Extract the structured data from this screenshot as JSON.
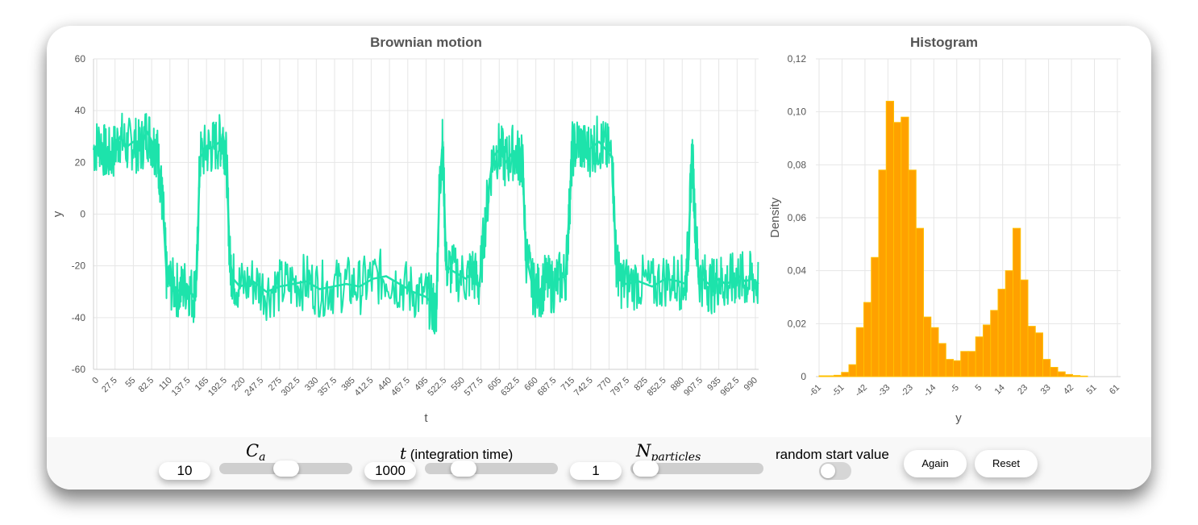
{
  "colors": {
    "line": "#1de3ab",
    "bars": "#ffa100",
    "barEdge": "#ffc000",
    "axisText": "#555555",
    "grid": "#e6e6e6"
  },
  "chart_data": [
    {
      "type": "line",
      "title": "Brownian motion",
      "xlabel": "t",
      "ylabel": "y",
      "xlim": [
        0,
        1000
      ],
      "ylim": [
        -60,
        60
      ],
      "x_ticks": [
        "0",
        "27.5",
        "55",
        "82.5",
        "110",
        "137.5",
        "165",
        "192.5",
        "220",
        "247.5",
        "275",
        "302.5",
        "330",
        "357.5",
        "385",
        "412.5",
        "440",
        "467.5",
        "495",
        "522.5",
        "550",
        "577.5",
        "605",
        "632.5",
        "660",
        "687.5",
        "715",
        "742.5",
        "770",
        "797.5",
        "825",
        "852.5",
        "880",
        "907.5",
        "935",
        "962.5",
        "990"
      ],
      "y_ticks": [
        "60",
        "40",
        "20",
        "0",
        "-20",
        "-40",
        "-60"
      ],
      "grid": true,
      "series": [
        {
          "x": [
            0,
            10,
            20,
            30,
            40,
            50,
            60,
            70,
            80,
            90,
            95,
            100,
            105,
            110,
            120,
            130,
            140,
            150,
            155,
            160,
            170,
            180,
            190,
            195,
            200,
            205,
            210,
            220,
            240,
            260,
            280,
            300,
            320,
            340,
            360,
            380,
            400,
            420,
            440,
            460,
            480,
            500,
            510,
            515,
            520,
            525,
            530,
            540,
            560,
            570,
            580,
            590,
            600,
            610,
            620,
            630,
            640,
            645,
            650,
            660,
            670,
            680,
            690,
            700,
            710,
            715,
            720,
            730,
            740,
            750,
            760,
            770,
            780,
            785,
            790,
            800,
            820,
            840,
            860,
            880,
            890,
            895,
            900,
            905,
            910,
            920,
            930,
            940,
            950,
            960,
            970,
            980,
            990,
            1000
          ],
          "y": [
            25,
            28,
            22,
            24,
            30,
            26,
            28,
            25,
            32,
            27,
            25,
            15,
            0,
            -25,
            -28,
            -30,
            -27,
            -32,
            -25,
            22,
            25,
            26,
            28,
            30,
            20,
            -18,
            -25,
            -28,
            -26,
            -30,
            -28,
            -27,
            -26,
            -29,
            -28,
            -27,
            -28,
            -25,
            -24,
            -27,
            -30,
            -32,
            -35,
            -40,
            10,
            28,
            -20,
            -22,
            -25,
            -22,
            -28,
            0,
            22,
            25,
            20,
            24,
            22,
            20,
            -15,
            -28,
            -30,
            -26,
            -28,
            -25,
            -24,
            0,
            25,
            28,
            24,
            26,
            28,
            25,
            22,
            -15,
            -25,
            -27,
            -26,
            -28,
            -25,
            -26,
            -27,
            -10,
            25,
            -5,
            -24,
            -26,
            -28,
            -25,
            -27,
            -26,
            -24,
            -26,
            -25,
            -27
          ]
        }
      ]
    },
    {
      "type": "bar",
      "title": "Histogram",
      "xlabel": "y",
      "ylabel": "Density",
      "ylim": [
        0,
        0.12
      ],
      "y_ticks": [
        "0,12",
        "0,10",
        "0,08",
        "0,06",
        "0,04",
        "0,02",
        "0"
      ],
      "x_ticks": [
        "-61",
        "-51",
        "-42",
        "-33",
        "-23",
        "-14",
        "-5",
        "5",
        "14",
        "23",
        "33",
        "42",
        "51",
        "61"
      ],
      "bins_from": -61,
      "bin_width": 3.05,
      "values": [
        0.0003,
        0.0003,
        0.0005,
        0.0016,
        0.0045,
        0.0185,
        0.028,
        0.045,
        0.078,
        0.104,
        0.096,
        0.098,
        0.078,
        0.056,
        0.0225,
        0.0185,
        0.0125,
        0.0065,
        0.006,
        0.0095,
        0.0095,
        0.015,
        0.0195,
        0.025,
        0.033,
        0.04,
        0.056,
        0.0365,
        0.019,
        0.0165,
        0.0065,
        0.0035,
        0.0018,
        0.0008,
        0.0004,
        0.0002
      ]
    }
  ],
  "controls": {
    "ca": {
      "label_base": "C",
      "label_sub": "a",
      "value": "10",
      "fraction": 0.5
    },
    "time": {
      "label_math": "t",
      "label_text": " (integration time)",
      "value": "1000",
      "fraction": 0.24
    },
    "particles": {
      "label_base": "N",
      "label_sub": "particles",
      "value": "1",
      "fraction": 0.02
    },
    "random_start": {
      "label": "random start value",
      "checked": false
    },
    "again_label": "Again",
    "reset_label": "Reset"
  }
}
